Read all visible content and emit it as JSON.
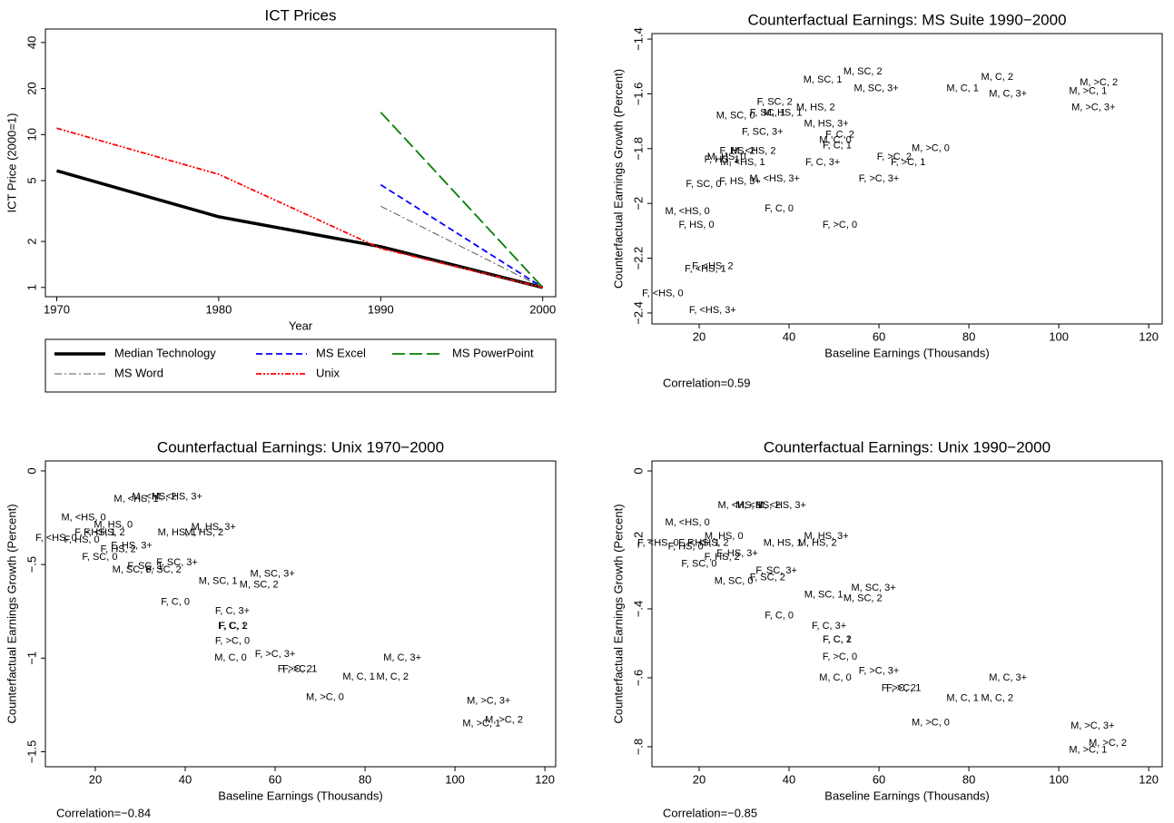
{
  "chart_data": [
    {
      "type": "line",
      "title": "ICT Prices",
      "x_label": "Year",
      "y_label": "ICT Price (2000=1)",
      "x": [
        1970,
        1980,
        1990,
        2000
      ],
      "series": [
        {
          "name": "Median Technology",
          "color": "#000000",
          "width": 3.5,
          "dash": "none",
          "values": [
            5.8,
            2.9,
            1.85,
            1
          ]
        },
        {
          "name": "MS Excel",
          "color": "#0000ff",
          "width": 1.8,
          "dash": "7,4",
          "values": [
            null,
            null,
            4.7,
            1
          ]
        },
        {
          "name": "MS PowerPoint",
          "color": "#008000",
          "width": 1.8,
          "dash": "14,5",
          "values": [
            null,
            null,
            14,
            1
          ]
        },
        {
          "name": "MS Word",
          "color": "#555555",
          "width": 1,
          "dash": "8,3,2,3",
          "values": [
            null,
            null,
            3.4,
            1
          ]
        },
        {
          "name": "Unix",
          "color": "#ff0000",
          "width": 1.8,
          "dash": "6,2,2,2,2,2",
          "values": [
            11,
            5.5,
            1.8,
            1
          ]
        }
      ],
      "xlim": [
        1969.3,
        2000.8
      ],
      "xticks": [
        1970,
        1980,
        1990,
        2000
      ],
      "ylim": [
        0.87,
        49
      ],
      "yticks": [
        1,
        2,
        5,
        10,
        20,
        40
      ],
      "log_y": true,
      "grid": false,
      "legend": "bottom"
    },
    {
      "type": "scatter",
      "title": "Counterfactual Earnings: MS Suite 1990−2000",
      "x_label": "Baseline Earnings (Thousands)",
      "y_label": "Counterfactual Earnings Growth (Percent)",
      "note": "Correlation=0.59",
      "labels": [
        "M, SC, 2",
        "M, SC, 1",
        "M, SC, 3+",
        "M, C, 2",
        "M, C, 1",
        "M, C, 3+",
        "M, >C, 2",
        "M, >C, 1",
        "M, >C, 3+",
        "F, SC, 2",
        "M, HS, 2",
        "M, SC, 0",
        "F, SC, 1",
        "M, HS, 1",
        "M, HS, 3+",
        "F, SC, 3+",
        "F, C, 2",
        "M, C, 0",
        "F, C, 1",
        "F, HS, 2",
        "M, <HS, 2",
        "M, HS, 0",
        "F, HS, 1",
        "M, <HS, 1",
        "M, >C, 0",
        "F, >C, 2",
        "F, >C, 1",
        "F, C, 3+",
        "F, SC, 0",
        "F, HS, 3+",
        "M, <HS, 3+",
        "F, >C, 3+",
        "M, <HS, 0",
        "F, C, 0",
        "F, HS, 0",
        "F, >C, 0",
        "F, <HS, 2",
        "F, <HS, 1",
        "F, <HS, 0",
        "F, <HS, 3+"
      ],
      "x": [
        56.4,
        47.5,
        59.4,
        86.3,
        78.6,
        88.7,
        108.9,
        106.5,
        107.7,
        36.8,
        45.9,
        28.1,
        35.2,
        38.6,
        48.3,
        34.1,
        51.3,
        50.3,
        50.7,
        28.5,
        32.1,
        26.1,
        25.1,
        29.7,
        71.5,
        63.4,
        66.5,
        47.5,
        21.0,
        29.1,
        36.8,
        60.0,
        17.4,
        37.8,
        19.4,
        51.3,
        23.0,
        21.4,
        11.9,
        23.0
      ],
      "values": [
        -1.52,
        -1.55,
        -1.58,
        -1.54,
        -1.58,
        -1.6,
        -1.56,
        -1.59,
        -1.65,
        -1.63,
        -1.65,
        -1.68,
        -1.67,
        -1.67,
        -1.71,
        -1.74,
        -1.75,
        -1.77,
        -1.79,
        -1.81,
        -1.81,
        -1.83,
        -1.84,
        -1.85,
        -1.8,
        -1.83,
        -1.85,
        -1.85,
        -1.93,
        -1.92,
        -1.91,
        -1.91,
        -2.03,
        -2.02,
        -2.08,
        -2.08,
        -2.23,
        -2.24,
        -2.33,
        -2.39
      ],
      "xlim": [
        9.5,
        123
      ],
      "xticks": [
        20,
        40,
        60,
        80,
        100,
        120
      ],
      "ylim": [
        -2.44,
        -1.38
      ],
      "yticks": [
        {
          "value": -2.4,
          "label": "−2.4"
        },
        {
          "value": -2.2,
          "label": "−2.2"
        },
        {
          "value": -2,
          "label": "−2"
        },
        {
          "value": -1.8,
          "label": "−1.8"
        },
        {
          "value": -1.6,
          "label": "−1.6"
        },
        {
          "value": -1.4,
          "label": "−1.4"
        }
      ],
      "grid": false
    },
    {
      "type": "scatter",
      "title": "Counterfactual Earnings: Unix 1970−2000",
      "x_label": "Baseline Earnings (Thousands)",
      "y_label": "Counterfactual Earnings Growth (Percent)",
      "note": "Correlation=−0.84",
      "labels": [
        "M, <HS, 1",
        "M, <HS, 2",
        "M, <HS, 3+",
        "M, <HS, 0",
        "M, HS, 0",
        "F, <HS, 1",
        "F, <HS, 2",
        "F, <HS, 0",
        "F, HS, 0",
        "M, HS, 1",
        "M, HS, 2",
        "M, HS, 3+",
        "F, HS, 3+",
        "F, HS, 2",
        "F, SC, 0",
        "M, SC, 0",
        "F, SC, 1",
        "F, SC, 2",
        "F, SC, 3+",
        "M, SC, 1",
        "M, SC, 3+",
        "M, SC, 2",
        "F, C, 0",
        "F, C, 3+",
        "F, C, 1",
        "F, C, 2",
        "F, >C, 0",
        "M, C, 0",
        "F, >C, 3+",
        "F, >C, 2",
        "F, >C, 1",
        "M, C, 3+",
        "M, C, 1",
        "M, C, 2",
        "M, >C, 0",
        "M, >C, 3+",
        "M, >C, 2",
        "M, >C, 1"
      ],
      "x": [
        29.1,
        33.1,
        38.2,
        17.4,
        24.0,
        20.0,
        22.0,
        11.3,
        17.0,
        38.2,
        44.2,
        46.3,
        28.1,
        25.1,
        21.0,
        28.1,
        31.1,
        35.2,
        38.2,
        47.3,
        59.4,
        56.4,
        37.8,
        50.5,
        50.5,
        50.7,
        50.5,
        50.1,
        60.0,
        64.4,
        65.5,
        88.3,
        78.6,
        86.1,
        71.1,
        107.5,
        110.9,
        105.9
      ],
      "values": [
        -0.15,
        -0.14,
        -0.14,
        -0.25,
        -0.29,
        -0.33,
        -0.33,
        -0.36,
        -0.37,
        -0.33,
        -0.33,
        -0.3,
        -0.4,
        -0.42,
        -0.46,
        -0.53,
        -0.51,
        -0.53,
        -0.49,
        -0.59,
        -0.55,
        -0.61,
        -0.7,
        -0.75,
        -0.83,
        -0.83,
        -0.91,
        -1.0,
        -0.98,
        -1.06,
        -1.06,
        -1.0,
        -1.1,
        -1.1,
        -1.21,
        -1.23,
        -1.33,
        -1.35
      ],
      "xlim": [
        8.9,
        122.4
      ],
      "xticks": [
        20,
        40,
        60,
        80,
        100,
        120
      ],
      "ylim": [
        -1.58,
        0.053
      ],
      "yticks": [
        {
          "value": -1.5,
          "label": "−1.5"
        },
        {
          "value": -1,
          "label": "−1"
        },
        {
          "value": -0.5,
          "label": "−.5"
        },
        0
      ],
      "grid": false
    },
    {
      "type": "scatter",
      "title": "Counterfactual Earnings: Unix 1990−2000",
      "x_label": "Baseline Earnings (Thousands)",
      "y_label": "Counterfactual Earnings Growth (Percent)",
      "note": "Correlation=−0.85",
      "labels": [
        "M, <HS, 1",
        "M, <HS, 2",
        "M, <HS, 3+",
        "M, <HS, 0",
        "M, HS, 0",
        "F, <HS, 0",
        "F, HS, 0",
        "F, <HS, 2",
        "F, <HS, 1",
        "M, HS, 1",
        "M, HS, 2",
        "M, HS, 3+",
        "F, HS, 3+",
        "F, HS, 2",
        "F, SC, 0",
        "M, SC, 0",
        "F, SC, 2",
        "F, SC, 3+",
        "M, SC, 1",
        "M, SC, 3+",
        "M, SC, 2",
        "F, C, 0",
        "F, C, 3+",
        "F, C, 1",
        "F, C, 2",
        "F, >C, 0",
        "F, >C, 3+",
        "M, C, 0",
        "F, >C, 2",
        "F, >C, 1",
        "M, C, 3+",
        "M, C, 1",
        "M, C, 2",
        "M, >C, 0",
        "M, >C, 3+",
        "M, >C, 2",
        "M, >C, 1"
      ],
      "x": [
        29.1,
        33.1,
        38.2,
        17.4,
        25.5,
        10.9,
        17.0,
        22.0,
        20.0,
        38.6,
        46.3,
        48.3,
        28.5,
        25.1,
        20.0,
        27.7,
        35.2,
        37.2,
        47.7,
        58.8,
        56.4,
        37.8,
        48.9,
        50.7,
        50.7,
        51.3,
        60.0,
        50.3,
        64.4,
        65.5,
        88.7,
        78.6,
        86.3,
        71.5,
        107.5,
        110.9,
        106.5
      ],
      "values": [
        -0.1,
        -0.1,
        -0.1,
        -0.15,
        -0.19,
        -0.21,
        -0.22,
        -0.21,
        -0.21,
        -0.21,
        -0.21,
        -0.19,
        -0.24,
        -0.25,
        -0.27,
        -0.32,
        -0.31,
        -0.29,
        -0.36,
        -0.34,
        -0.37,
        -0.42,
        -0.45,
        -0.49,
        -0.49,
        -0.54,
        -0.58,
        -0.6,
        -0.63,
        -0.63,
        -0.6,
        -0.66,
        -0.66,
        -0.73,
        -0.74,
        -0.79,
        -0.81
      ],
      "xlim": [
        9.5,
        123
      ],
      "xticks": [
        20,
        40,
        60,
        80,
        100,
        120
      ],
      "ylim": [
        -0.858,
        0.029
      ],
      "yticks": [
        {
          "value": -0.8,
          "label": "−.8"
        },
        {
          "value": -0.6,
          "label": "−.6"
        },
        {
          "value": -0.4,
          "label": "−.4"
        },
        {
          "value": -0.2,
          "label": "−.2"
        },
        0
      ],
      "grid": false
    }
  ]
}
